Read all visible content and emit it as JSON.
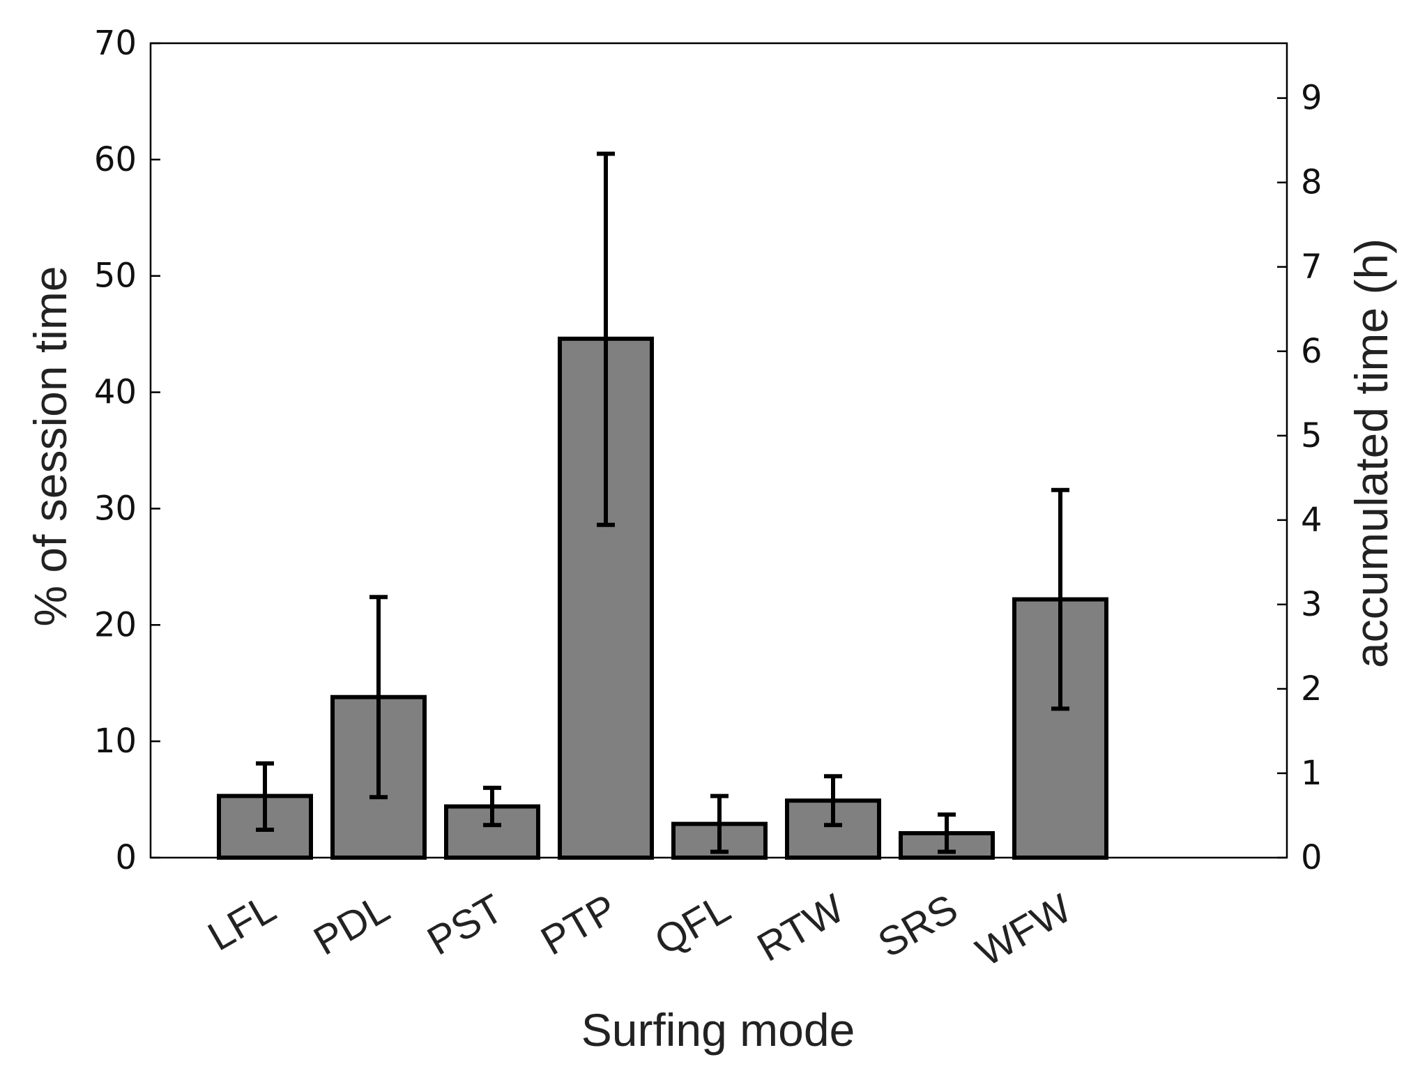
{
  "chart_data": {
    "type": "bar",
    "title": "",
    "xlabel": "Surfing mode",
    "ylabel": "% of session time",
    "y2label": "accumulated time (h)",
    "categories": [
      "LFL",
      "PDL",
      "PST",
      "PTP",
      "QFL",
      "RTW",
      "SRS",
      "WFW"
    ],
    "values": [
      5.3,
      13.8,
      4.4,
      44.6,
      2.9,
      4.9,
      2.1,
      22.2
    ],
    "error_low": [
      2.4,
      5.2,
      2.8,
      28.6,
      0.5,
      2.8,
      0.5,
      12.8
    ],
    "error_high": [
      8.1,
      22.4,
      6.0,
      60.5,
      5.3,
      7.0,
      3.7,
      31.6
    ],
    "ylim": [
      0,
      70
    ],
    "yticks": [
      0,
      10,
      20,
      30,
      40,
      50,
      60,
      70
    ],
    "y2lim": [
      0,
      9.65
    ],
    "y2ticks": [
      0,
      1,
      2,
      3,
      4,
      5,
      6,
      7,
      8,
      9
    ],
    "grid": false,
    "colors": {
      "bar_fill": "#808080",
      "bar_edge": "#000000"
    }
  }
}
